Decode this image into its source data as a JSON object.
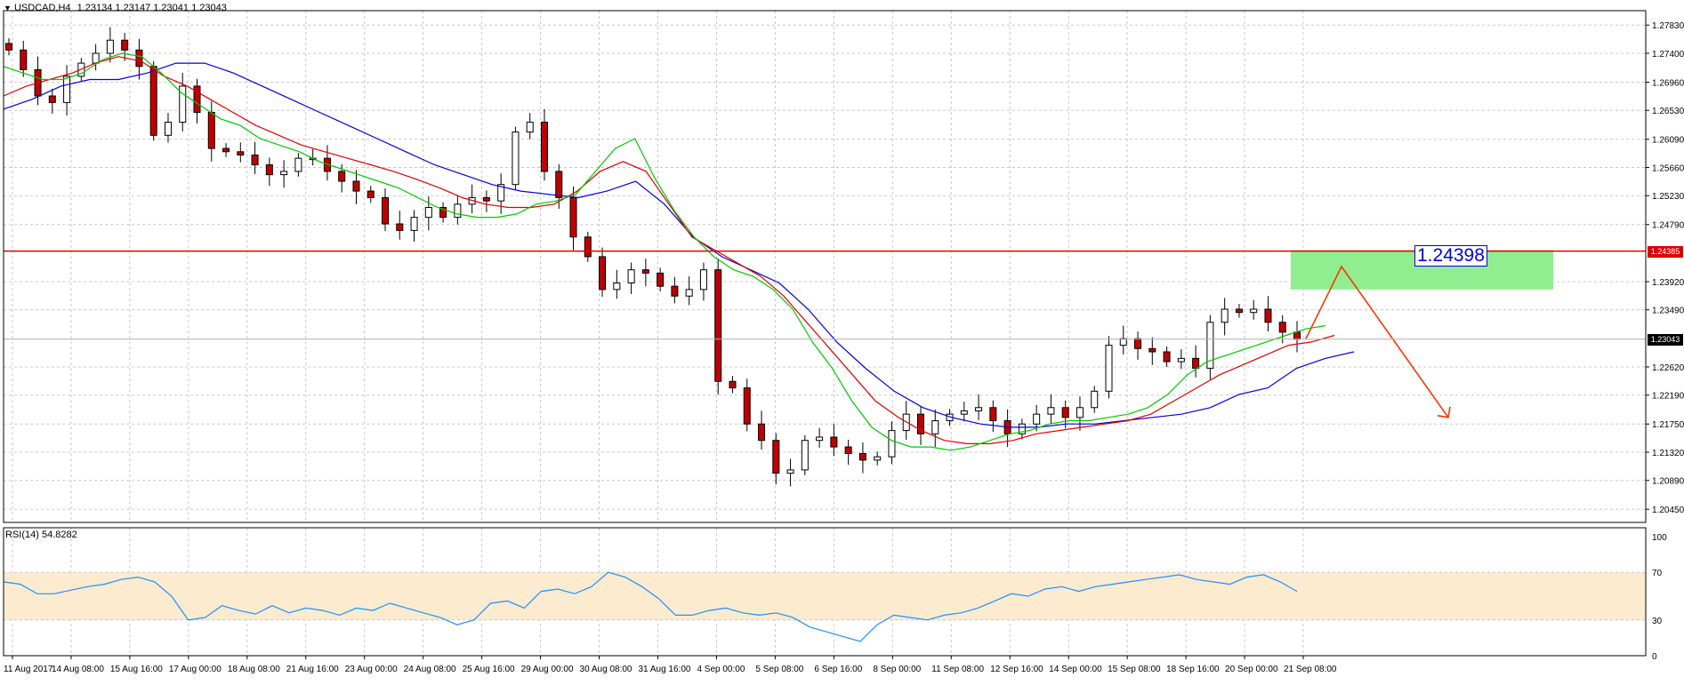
{
  "window": {
    "symbol_title": "USDCAD,H4",
    "ohlc_readout": "1.23134 1.23147 1.23041 1.23043",
    "collapse_icon": "triangle-down-icon"
  },
  "colors": {
    "bull_candle": "#000000",
    "bear_candle": "#c00000",
    "ma_fast": "#00c800",
    "ma_mid": "#e00000",
    "ma_slow": "#0000e0",
    "resistance_line": "#e00000",
    "target_zone": "#90ee90",
    "forecast_arrow": "#ff3300",
    "rsi_line": "#1e90ff",
    "rsi_band": "#fdebd0",
    "price_label_bg": "#e00000",
    "current_label_bg": "#000000"
  },
  "annotations": {
    "level_text": "1.24398",
    "resistance_label": "1.24385",
    "current_price_label": "1.23043"
  },
  "rsi_panel": {
    "title": "RSI(14) 54.8282",
    "levels": [
      "100",
      "70",
      "30",
      "0"
    ]
  },
  "chart_data": [
    {
      "type": "line",
      "title": "USDCAD,H4",
      "y_ticks": [
        "1.27830",
        "1.27400",
        "1.26960",
        "1.26530",
        "1.26090",
        "1.25660",
        "1.25230",
        "1.24790",
        "1.23920",
        "1.23490",
        "1.22620",
        "1.22190",
        "1.21750",
        "1.21320",
        "1.20890",
        "1.20450"
      ],
      "x_ticks": [
        "11 Aug 2017",
        "14 Aug 08:00",
        "15 Aug 16:00",
        "17 Aug 00:00",
        "18 Aug 08:00",
        "21 Aug 16:00",
        "23 Aug 00:00",
        "24 Aug 08:00",
        "25 Aug 16:00",
        "29 Aug 00:00",
        "30 Aug 08:00",
        "31 Aug 16:00",
        "4 Sep 00:00",
        "5 Sep 08:00",
        "6 Sep 16:00",
        "8 Sep 00:00",
        "11 Sep 08:00",
        "12 Sep 16:00",
        "14 Sep 00:00",
        "15 Sep 08:00",
        "18 Sep 16:00",
        "20 Sep 00:00",
        "21 Sep 08:00"
      ],
      "ylim": [
        1.2025,
        1.2805
      ],
      "series": [
        {
          "role": "price-close",
          "values": [
            1.2745,
            1.2715,
            1.2675,
            1.2665,
            1.2705,
            1.2725,
            1.274,
            1.276,
            1.2745,
            1.272,
            1.2615,
            1.2635,
            1.269,
            1.265,
            1.2595,
            1.259,
            1.2585,
            1.257,
            1.2555,
            1.256,
            1.258,
            1.258,
            1.256,
            1.2545,
            1.253,
            1.252,
            1.248,
            1.247,
            1.249,
            1.2505,
            1.249,
            1.251,
            1.252,
            1.2515,
            1.254,
            1.262,
            1.2635,
            1.256,
            1.252,
            1.246,
            1.243,
            1.238,
            1.239,
            1.241,
            1.2405,
            1.2385,
            1.237,
            1.238,
            1.241,
            1.224,
            1.223,
            1.2175,
            1.215,
            1.21,
            1.2105,
            1.215,
            1.2155,
            1.214,
            1.213,
            1.212,
            1.2125,
            1.2165,
            1.219,
            1.216,
            1.218,
            1.219,
            1.2195,
            1.22,
            1.218,
            1.216,
            1.2175,
            1.219,
            1.22,
            1.2185,
            1.22,
            1.2225,
            1.2295,
            1.2305,
            1.229,
            1.2285,
            1.227,
            1.2275,
            1.226,
            1.233,
            1.235,
            1.2345,
            1.235,
            1.233,
            1.2315,
            1.23043
          ]
        },
        {
          "role": "ma-fast",
          "values": [
            1.272,
            1.271,
            1.27,
            1.27,
            1.271,
            1.273,
            1.274,
            1.2735,
            1.271,
            1.268,
            1.266,
            1.264,
            1.263,
            1.261,
            1.26,
            1.259,
            1.2575,
            1.2565,
            1.2555,
            1.2545,
            1.2535,
            1.252,
            1.2505,
            1.2495,
            1.249,
            1.249,
            1.2495,
            1.251,
            1.2515,
            1.2525,
            1.256,
            1.2595,
            1.261,
            1.255,
            1.25,
            1.246,
            1.243,
            1.241,
            1.24,
            1.238,
            1.235,
            1.23,
            1.226,
            1.221,
            1.217,
            1.215,
            1.214,
            1.214,
            1.2135,
            1.214,
            1.215,
            1.216,
            1.2165,
            1.2175,
            1.218,
            1.218,
            1.2185,
            1.219,
            1.22,
            1.222,
            1.225,
            1.227,
            1.228,
            1.229,
            1.23,
            1.231,
            1.232,
            1.2325
          ]
        },
        {
          "role": "ma-mid",
          "values": [
            1.2675,
            1.269,
            1.27,
            1.271,
            1.2725,
            1.2735,
            1.2728,
            1.2705,
            1.269,
            1.267,
            1.265,
            1.263,
            1.2615,
            1.26,
            1.259,
            1.258,
            1.257,
            1.256,
            1.2548,
            1.2535,
            1.252,
            1.251,
            1.2505,
            1.2505,
            1.251,
            1.253,
            1.256,
            1.2575,
            1.256,
            1.251,
            1.246,
            1.244,
            1.242,
            1.24,
            1.237,
            1.233,
            1.229,
            1.225,
            1.221,
            1.2185,
            1.2165,
            1.215,
            1.2145,
            1.2145,
            1.215,
            1.216,
            1.2165,
            1.217,
            1.2175,
            1.218,
            1.219,
            1.221,
            1.223,
            1.225,
            1.2265,
            1.228,
            1.2295,
            1.23,
            1.231
          ]
        },
        {
          "role": "ma-slow",
          "values": [
            1.2655,
            1.267,
            1.269,
            1.27,
            1.27,
            1.271,
            1.2725,
            1.2725,
            1.271,
            1.269,
            1.267,
            1.265,
            1.263,
            1.261,
            1.259,
            1.257,
            1.2555,
            1.254,
            1.253,
            1.2525,
            1.252,
            1.253,
            1.2545,
            1.251,
            1.246,
            1.243,
            1.241,
            1.239,
            1.235,
            1.23,
            1.226,
            1.2225,
            1.22,
            1.2185,
            1.2175,
            1.217,
            1.217,
            1.2175,
            1.2175,
            1.218,
            1.2185,
            1.219,
            1.22,
            1.222,
            1.223,
            1.226,
            1.2275,
            1.2285
          ]
        },
        {
          "role": "resistance-level",
          "values": [
            1.24385
          ]
        },
        {
          "role": "target-zone",
          "values": [
            1.238,
            1.244
          ]
        },
        {
          "role": "forecast-path",
          "values": [
            1.2305,
            1.2415,
            1.2185
          ]
        }
      ]
    },
    {
      "type": "line",
      "title": "RSI(14) 54.8282",
      "ylim": [
        0,
        100
      ],
      "y_ticks": [
        "100",
        "70",
        "30",
        "0"
      ],
      "series": [
        {
          "name": "RSI(14)",
          "values": [
            62,
            60,
            52,
            52,
            55,
            58,
            60,
            64,
            66,
            62,
            50,
            30,
            32,
            42,
            38,
            35,
            42,
            36,
            40,
            38,
            34,
            40,
            38,
            44,
            40,
            36,
            32,
            26,
            30,
            44,
            46,
            40,
            54,
            56,
            52,
            58,
            70,
            66,
            58,
            48,
            34,
            34,
            38,
            40,
            36,
            34,
            36,
            32,
            24,
            20,
            16,
            12,
            26,
            34,
            32,
            30,
            34,
            36,
            40,
            46,
            52,
            50,
            56,
            58,
            54,
            58,
            60,
            62,
            64,
            66,
            68,
            64,
            62,
            60,
            66,
            68,
            62,
            54
          ]
        }
      ]
    }
  ]
}
